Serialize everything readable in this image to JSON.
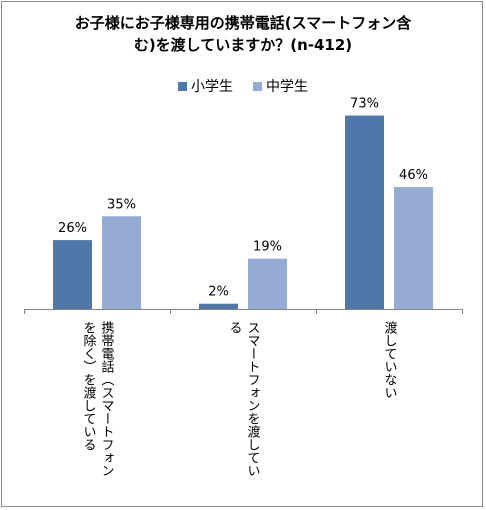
{
  "chart_data": {
    "type": "bar",
    "title": "お子様にお子様専用の携帯電話(スマートフォン含む)を渡していますか？(n-412)",
    "title_lines": [
      "お子様にお子様専用の携帯電話(スマートフォン含",
      "む)を渡していますか？(n-412)"
    ],
    "categories": [
      "携帯電話（スマートフォンを除く）を渡している",
      "スマートフォンを渡している",
      "渡していない"
    ],
    "category_label_columns": [
      [
        "携帯電話（スマートフォン",
        "を除く）を渡している"
      ],
      [
        "スマートフォンを渡してい",
        "る"
      ],
      [
        "渡していない"
      ]
    ],
    "series": [
      {
        "name": "小学生",
        "values": [
          26,
          2,
          73
        ],
        "labels": [
          "26%",
          "2%",
          "73%"
        ],
        "color": "#4f77aa"
      },
      {
        "name": "中学生",
        "values": [
          35,
          19,
          46
        ],
        "labels": [
          "35%",
          "19%",
          "46%"
        ],
        "color": "#95abd4"
      }
    ],
    "ylim": [
      0,
      80
    ],
    "grid": false,
    "legend_position": "top",
    "xlabel": "",
    "ylabel": ""
  }
}
